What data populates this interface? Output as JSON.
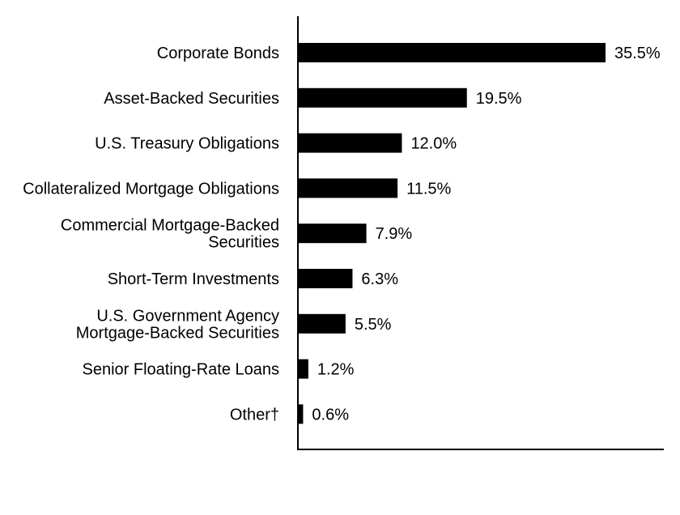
{
  "chart_data": {
    "type": "bar",
    "orientation": "horizontal",
    "categories": [
      [
        "Corporate Bonds"
      ],
      [
        "Asset-Backed Securities"
      ],
      [
        "U.S. Treasury Obligations"
      ],
      [
        "Collateralized Mortgage Obligations"
      ],
      [
        "Commercial Mortgage-Backed",
        "Securities"
      ],
      [
        "Short-Term Investments"
      ],
      [
        "U.S. Government Agency",
        "Mortgage-Backed Securities"
      ],
      [
        "Senior Floating-Rate Loans"
      ],
      [
        "Other†"
      ]
    ],
    "values": [
      35.5,
      19.5,
      12.0,
      11.5,
      7.9,
      6.3,
      5.5,
      1.2,
      0.6
    ],
    "value_labels": [
      "35.5%",
      "19.5%",
      "12.0%",
      "11.5%",
      "7.9%",
      "6.3%",
      "5.5%",
      "1.2%",
      "0.6%"
    ],
    "xlim": [
      0,
      42
    ],
    "grid": false,
    "bar_color": "#000000"
  }
}
